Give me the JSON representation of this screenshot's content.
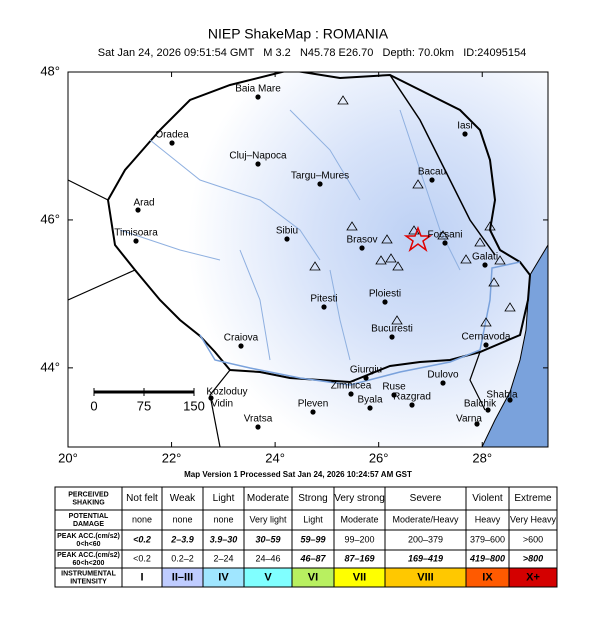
{
  "header": {
    "title": "NIEP ShakeMap : ROMANIA",
    "subtitle": "Sat Jan 24, 2026 09:51:54 GMT   M 3.2   N45.78 E26.70   Depth: 70.0km   ID:24095154"
  },
  "map": {
    "xlim": [
      20,
      29.27
    ],
    "ylim": [
      42.93,
      48
    ],
    "xticks": [
      {
        "value": 20,
        "label": "20°"
      },
      {
        "value": 22,
        "label": "22°"
      },
      {
        "value": 24,
        "label": "24°"
      },
      {
        "value": 26,
        "label": "26°"
      },
      {
        "value": 28,
        "label": "28°"
      }
    ],
    "yticks": [
      {
        "value": 44,
        "label": "44°"
      },
      {
        "value": 46,
        "label": "46°"
      },
      {
        "value": 48,
        "label": "48°"
      }
    ],
    "cities": [
      "Baia Mare",
      "Oradea",
      "Cluj–Napoca",
      "Targu–Mures",
      "Iasi",
      "Bacau",
      "Arad",
      "Timisoara",
      "Sibiu",
      "Brasov",
      "Focsani",
      "Galati",
      "Ploiesti",
      "Pitesti",
      "Bucuresti",
      "Craiova",
      "Cernavoda",
      "Giurgiu",
      "Zimnicea",
      "Ruse",
      "Dulovo",
      "Kozloduy",
      "Vidin",
      "Razgrad",
      "Byala",
      "Pleven",
      "Shabla",
      "Balchik",
      "Vratsa",
      "Varna"
    ],
    "scale_ticks": [
      0,
      75,
      150
    ]
  },
  "footer": {
    "processed": "Map Version 1 Processed Sat Jan 24, 2026 10:24:57 AM GST"
  },
  "table": {
    "rows": [
      {
        "label": [
          "PERCEIVED",
          "SHAKING"
        ],
        "cells": [
          "Not felt",
          "Weak",
          "Light",
          "Moderate",
          "Strong",
          "Very strong",
          "Severe",
          "Violent",
          "Extreme"
        ]
      },
      {
        "label": [
          "POTENTIAL",
          "DAMAGE"
        ],
        "cells": [
          "none",
          "none",
          "none",
          "Very light",
          "Light",
          "Moderate",
          "Moderate/Heavy",
          "Heavy",
          "Very Heavy"
        ]
      },
      {
        "label": [
          "PEAK ACC.(cm/s2)",
          "0<h<60"
        ],
        "cells": [
          "<0.2",
          "2–3.9",
          "3.9–30",
          "30–59",
          "59–99",
          "99–200",
          "200–379",
          "379–600",
          ">600"
        ]
      },
      {
        "label": [
          "PEAK ACC.(cm/s2)",
          "60<h<200"
        ],
        "cells": [
          "<0.2",
          "0.2–2",
          "2–24",
          "24–46",
          "46–87",
          "87–169",
          "169–419",
          "419–800",
          ">800"
        ]
      },
      {
        "label": [
          "INSTRUMENTAL",
          "INTENSITY"
        ],
        "cells": [
          "I",
          "II–III",
          "IV",
          "V",
          "VI",
          "VII",
          "VIII",
          "IX",
          "X+"
        ]
      }
    ],
    "intensity_colors": [
      "#ffffff",
      "#bfccff",
      "#a0e6ff",
      "#80ffff",
      "#b8f060",
      "#ffff00",
      "#ffc800",
      "#ff5a00",
      "#d40000"
    ]
  }
}
